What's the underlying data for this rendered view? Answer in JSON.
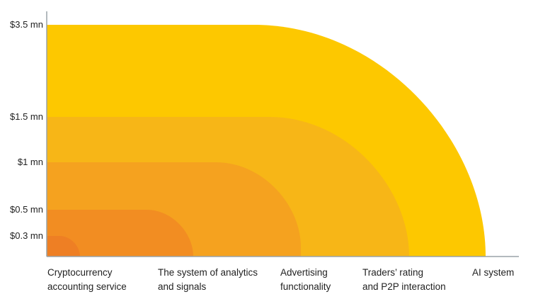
{
  "chart_data": {
    "type": "area",
    "title": "",
    "xlabel": "",
    "ylabel": "",
    "y_tick_labels": [
      "$0.3 mn",
      "$0.5 mn",
      "$1 mn",
      "$1.5 mn",
      "$3.5 mn"
    ],
    "categories": [
      [
        "Cryptocurrency",
        "accounting service"
      ],
      [
        "The system of analytics",
        "and signals"
      ],
      [
        "Advertising",
        "functionality"
      ],
      [
        "Traders’ rating",
        "and P2P interaction"
      ],
      [
        "AI system"
      ]
    ],
    "values_mn": [
      0.3,
      0.5,
      1,
      1.5,
      3.5
    ],
    "colors": [
      "#ee7f24",
      "#f28d22",
      "#f5a21f",
      "#f7b617",
      "#fdc800"
    ],
    "axis_color": "#9aa3a8",
    "grid": false,
    "legend": "none"
  }
}
